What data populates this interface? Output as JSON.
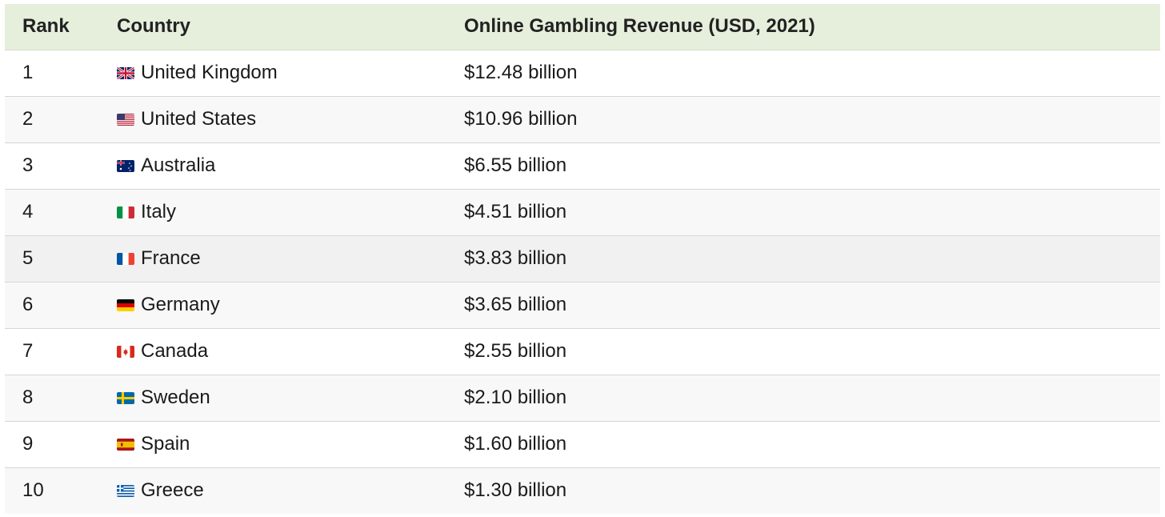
{
  "table": {
    "headers": {
      "rank": "Rank",
      "country": "Country",
      "revenue": "Online Gambling Revenue (USD, 2021)"
    },
    "rows": [
      {
        "rank": "1",
        "flag_icon": "uk-flag-icon",
        "country": "United Kingdom",
        "revenue": "$12.48 billion"
      },
      {
        "rank": "2",
        "flag_icon": "us-flag-icon",
        "country": "United States",
        "revenue": "$10.96 billion"
      },
      {
        "rank": "3",
        "flag_icon": "australia-flag-icon",
        "country": "Australia",
        "revenue": "$6.55 billion"
      },
      {
        "rank": "4",
        "flag_icon": "italy-flag-icon",
        "country": "Italy",
        "revenue": "$4.51 billion"
      },
      {
        "rank": "5",
        "flag_icon": "france-flag-icon",
        "country": "France",
        "revenue": "$3.83 billion"
      },
      {
        "rank": "6",
        "flag_icon": "germany-flag-icon",
        "country": "Germany",
        "revenue": "$3.65 billion"
      },
      {
        "rank": "7",
        "flag_icon": "canada-flag-icon",
        "country": "Canada",
        "revenue": "$2.55 billion"
      },
      {
        "rank": "8",
        "flag_icon": "sweden-flag-icon",
        "country": "Sweden",
        "revenue": "$2.10 billion"
      },
      {
        "rank": "9",
        "flag_icon": "spain-flag-icon",
        "country": "Spain",
        "revenue": "$1.60 billion"
      },
      {
        "rank": "10",
        "flag_icon": "greece-flag-icon",
        "country": "Greece",
        "revenue": "$1.30 billion"
      }
    ]
  },
  "colors": {
    "header_bg": "#e5efdc",
    "row_alt_bg": "#f8f8f8",
    "row_hover_bg": "#f1f1f1",
    "divider": "#d6d6d6"
  }
}
